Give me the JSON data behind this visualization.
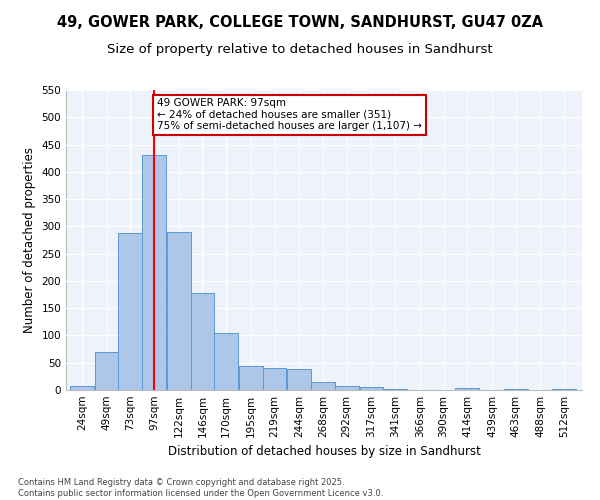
{
  "title_line1": "49, GOWER PARK, COLLEGE TOWN, SANDHURST, GU47 0ZA",
  "title_line2": "Size of property relative to detached houses in Sandhurst",
  "xlabel": "Distribution of detached houses by size in Sandhurst",
  "ylabel": "Number of detached properties",
  "bins": [
    24,
    49,
    73,
    97,
    122,
    146,
    170,
    195,
    219,
    244,
    268,
    292,
    317,
    341,
    366,
    390,
    414,
    439,
    463,
    488,
    512
  ],
  "bar_values": [
    8,
    70,
    288,
    430,
    290,
    178,
    105,
    44,
    40,
    38,
    15,
    8,
    5,
    2,
    0,
    0,
    3,
    0,
    2,
    0,
    2
  ],
  "bar_color": "#aec6e8",
  "bar_edge_color": "#5b9bd5",
  "red_line_x": 97,
  "annotation_text": "49 GOWER PARK: 97sqm\n← 24% of detached houses are smaller (351)\n75% of semi-detached houses are larger (1,107) →",
  "annotation_box_color": "#ffffff",
  "annotation_box_edge": "#cc0000",
  "ylim": [
    0,
    550
  ],
  "yticks": [
    0,
    50,
    100,
    150,
    200,
    250,
    300,
    350,
    400,
    450,
    500,
    550
  ],
  "footer": "Contains HM Land Registry data © Crown copyright and database right 2025.\nContains public sector information licensed under the Open Government Licence v3.0.",
  "background_color": "#eef2fb",
  "grid_color": "#ffffff",
  "title_fontsize": 10.5,
  "subtitle_fontsize": 9.5,
  "axis_label_fontsize": 8.5,
  "tick_fontsize": 7.5,
  "annotation_fontsize": 7.5,
  "footer_fontsize": 6.0
}
